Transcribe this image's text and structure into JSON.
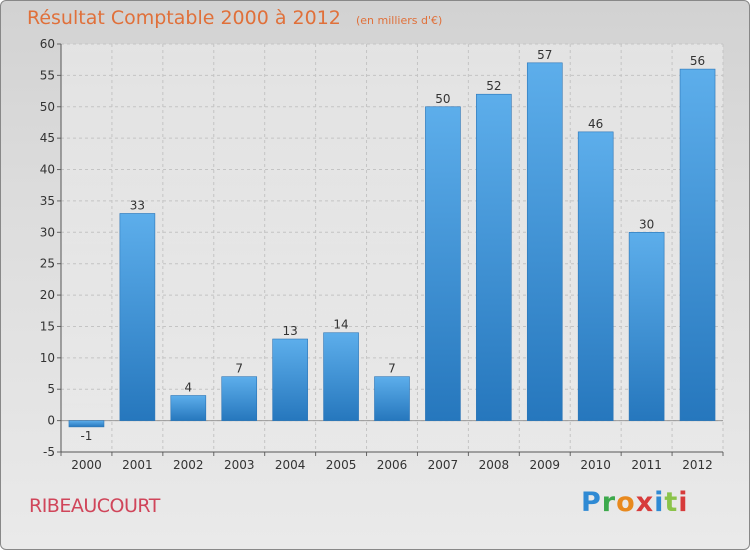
{
  "chart_data": {
    "type": "bar",
    "title": "Résultat Comptable 2000 à 2012",
    "subtitle": "(en milliers d'€)",
    "categories": [
      "2000",
      "2001",
      "2002",
      "2003",
      "2004",
      "2005",
      "2006",
      "2007",
      "2008",
      "2009",
      "2010",
      "2011",
      "2012"
    ],
    "values": [
      -1,
      33,
      4,
      7,
      13,
      14,
      7,
      50,
      52,
      57,
      46,
      30,
      56
    ],
    "ylim": [
      -5,
      60
    ],
    "yticks": [
      -5,
      0,
      5,
      10,
      15,
      20,
      25,
      30,
      35,
      40,
      45,
      50,
      55,
      60
    ],
    "grid": true,
    "xlabel": "",
    "ylabel": "",
    "bar_color": "#3a8fd6"
  },
  "footer": {
    "town": "RIBEAUCOURT",
    "brand": "Proxiti",
    "brand_letters": [
      "P",
      "r",
      "o",
      "x",
      "i",
      "t",
      "i"
    ]
  }
}
